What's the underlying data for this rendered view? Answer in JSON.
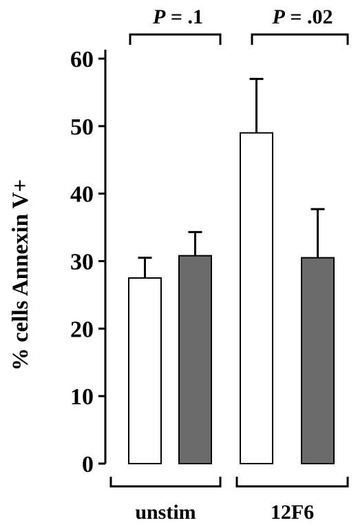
{
  "chart_data": {
    "type": "bar",
    "ylabel": "% cells Annexin V+",
    "ylim": [
      0,
      60
    ],
    "yticks": [
      0,
      10,
      20,
      30,
      40,
      50,
      60
    ],
    "grid": false,
    "legend": "none",
    "groups": [
      "unstim",
      "12F6"
    ],
    "bars": [
      {
        "group": "unstim",
        "fill": "#ffffff",
        "value": 27.5,
        "error": 3.0
      },
      {
        "group": "unstim",
        "fill": "#6b6b6b",
        "value": 30.8,
        "error": 3.5
      },
      {
        "group": "12F6",
        "fill": "#ffffff",
        "value": 49.0,
        "error": 8.0
      },
      {
        "group": "12F6",
        "fill": "#6b6b6b",
        "value": 30.5,
        "error": 7.2
      }
    ],
    "annotations": [
      {
        "group": "unstim",
        "label": "= .1",
        "italic_prefix": "P"
      },
      {
        "group": "12F6",
        "label": "= .02",
        "italic_prefix": "P"
      }
    ]
  }
}
